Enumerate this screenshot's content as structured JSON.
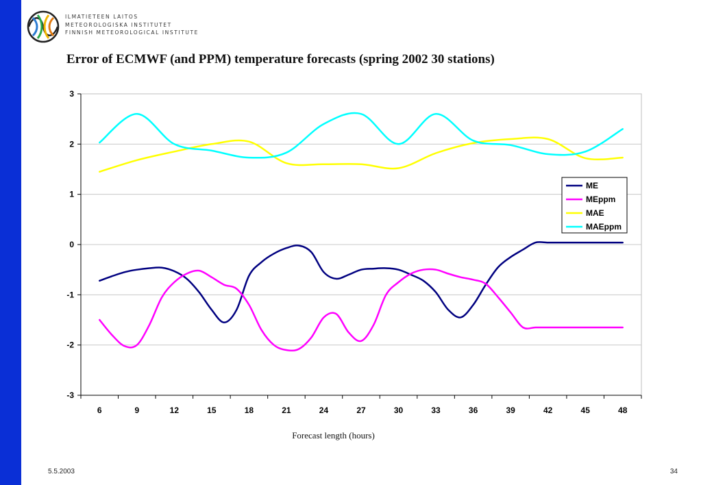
{
  "header": {
    "institute_lines": [
      "ILMATIETEEN LAITOS",
      "METEOROLOGISKA INSTITUTET",
      "FINNISH METEOROLOGICAL INSTITUTE"
    ],
    "logo_icon": "fmi-logo-icon"
  },
  "footer": {
    "date": "5.5.2003",
    "page": "34"
  },
  "colors": {
    "sidebar": "#0a2fd6"
  },
  "chart_data": {
    "type": "line",
    "title": "Error of ECMWF (and PPM) temperature forecasts (spring 2002 30 stations)",
    "xlabel": "Forecast length (hours)",
    "ylabel": "",
    "categories": [
      "6",
      "9",
      "12",
      "15",
      "18",
      "21",
      "24",
      "27",
      "30",
      "33",
      "36",
      "39",
      "42",
      "45",
      "48"
    ],
    "ylim": [
      -3,
      3
    ],
    "yticks": [
      "3",
      "2",
      "1",
      "0",
      "-1",
      "-2",
      "-3"
    ],
    "grid": "horizontal",
    "legend_position": "right",
    "series": [
      {
        "name": "ME",
        "color": "#000080",
        "x": [
          6,
          7,
          8,
          9,
          10,
          11,
          12,
          13,
          14,
          15,
          16,
          17,
          18,
          19,
          20,
          21,
          22,
          23,
          24,
          25,
          26,
          27,
          28,
          29,
          30,
          31,
          32,
          33,
          34,
          35,
          36,
          37,
          38,
          39,
          40,
          41,
          42,
          43,
          44,
          45,
          46,
          47,
          48
        ],
        "values": [
          -0.72,
          -0.63,
          -0.55,
          -0.5,
          -0.47,
          -0.46,
          -0.53,
          -0.68,
          -0.95,
          -1.3,
          -1.55,
          -1.3,
          -0.62,
          -0.35,
          -0.18,
          -0.07,
          -0.02,
          -0.15,
          -0.55,
          -0.68,
          -0.6,
          -0.5,
          -0.48,
          -0.47,
          -0.5,
          -0.6,
          -0.72,
          -0.95,
          -1.3,
          -1.45,
          -1.2,
          -0.8,
          -0.45,
          -0.25,
          -0.1,
          0.04,
          0.04,
          0.04,
          0.04,
          0.04,
          0.04,
          0.04,
          0.04
        ]
      },
      {
        "name": "MEppm",
        "color": "#ff00ff",
        "x": [
          6,
          7,
          8,
          9,
          10,
          11,
          12,
          13,
          14,
          15,
          16,
          17,
          18,
          19,
          20,
          21,
          22,
          23,
          24,
          25,
          26,
          27,
          28,
          29,
          30,
          31,
          32,
          33,
          34,
          35,
          36,
          37,
          38,
          39,
          40,
          41,
          42,
          43,
          44,
          45,
          46,
          47,
          48
        ],
        "values": [
          -1.5,
          -1.8,
          -2.02,
          -2.0,
          -1.6,
          -1.05,
          -0.75,
          -0.58,
          -0.52,
          -0.65,
          -0.8,
          -0.88,
          -1.2,
          -1.7,
          -2.0,
          -2.1,
          -2.08,
          -1.85,
          -1.45,
          -1.38,
          -1.75,
          -1.92,
          -1.6,
          -1.0,
          -0.75,
          -0.58,
          -0.5,
          -0.5,
          -0.58,
          -0.65,
          -0.7,
          -0.78,
          -1.05,
          -1.35,
          -1.65,
          -1.65,
          -1.65,
          -1.65,
          -1.65,
          -1.65,
          -1.65,
          -1.65,
          -1.65
        ]
      },
      {
        "name": "MAE",
        "color": "#ffff00",
        "x": [
          6,
          9,
          12,
          15,
          18,
          21,
          24,
          27,
          30,
          33,
          36,
          39,
          42,
          45,
          48
        ],
        "values": [
          1.45,
          1.68,
          1.85,
          2.0,
          2.05,
          1.62,
          1.6,
          1.6,
          1.52,
          1.82,
          2.02,
          2.1,
          2.1,
          1.72,
          1.73
        ]
      },
      {
        "name": "MAEppm",
        "color": "#00ffff",
        "x": [
          6,
          9,
          12,
          15,
          18,
          21,
          24,
          27,
          30,
          33,
          36,
          39,
          42,
          45,
          48
        ],
        "values": [
          2.03,
          2.6,
          2.0,
          1.87,
          1.73,
          1.83,
          2.4,
          2.6,
          2.0,
          2.6,
          2.07,
          1.98,
          1.8,
          1.85,
          2.3
        ]
      }
    ]
  }
}
